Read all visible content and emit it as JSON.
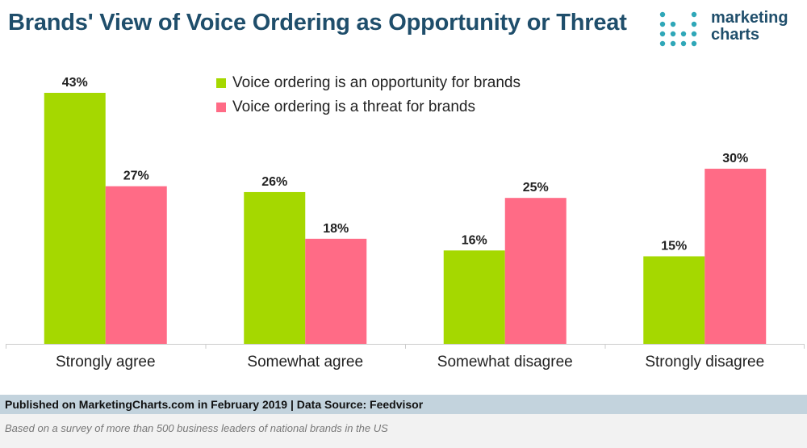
{
  "title": "Brands' View of Voice Ordering as Opportunity or Threat",
  "logo": {
    "line1": "marketing",
    "line2": "charts"
  },
  "footer": {
    "published": "Published on MarketingCharts.com in February 2019 | Data Source: Feedvisor",
    "note": "Based on a survey of more than 500 business leaders of national brands in the US"
  },
  "colors": {
    "opportunity": "#a5d800",
    "threat": "#ff6b86",
    "axis": "#cccccc",
    "title": "#1f4e6b"
  },
  "chart_data": {
    "type": "bar",
    "title": "Brands' View of Voice Ordering as Opportunity or Threat",
    "categories": [
      "Strongly agree",
      "Somewhat agree",
      "Somewhat disagree",
      "Strongly disagree"
    ],
    "series": [
      {
        "name": "Voice ordering is an opportunity for brands",
        "values": [
          43,
          26,
          16,
          15
        ],
        "labels": [
          "43%",
          "26%",
          "16%",
          "15%"
        ]
      },
      {
        "name": "Voice ordering is a threat for brands",
        "values": [
          27,
          18,
          25,
          30
        ],
        "labels": [
          "27%",
          "18%",
          "25%",
          "30%"
        ]
      }
    ],
    "xlabel": "",
    "ylabel": "",
    "ylim": [
      0,
      43
    ],
    "legend": "top-center"
  }
}
